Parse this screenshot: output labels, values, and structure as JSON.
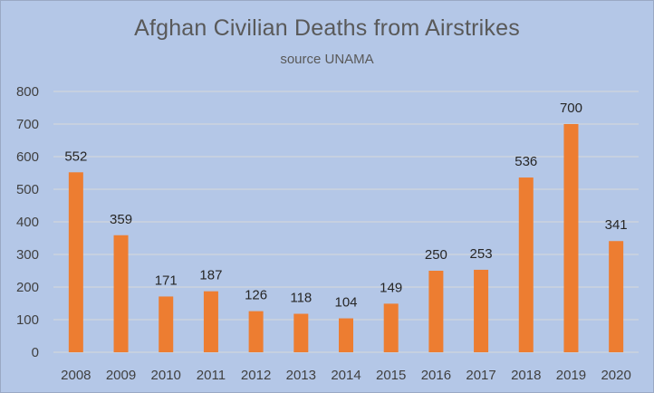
{
  "colors": {
    "background": "#b4c7e7",
    "bar": "#ed7d31",
    "grid": "#d9d9d9",
    "text": "#595959"
  },
  "chart_data": {
    "type": "bar",
    "title": "Afghan Civilian Deaths from Airstrikes",
    "subtitle": "source UNAMA",
    "xlabel": "",
    "ylabel": "",
    "ylim": [
      0,
      800
    ],
    "yticks": [
      0,
      100,
      200,
      300,
      400,
      500,
      600,
      700,
      800
    ],
    "grid": true,
    "legend": "none",
    "data_labels": true,
    "categories": [
      "2008",
      "2009",
      "2010",
      "2011",
      "2012",
      "2013",
      "2014",
      "2015",
      "2016",
      "2017",
      "2018",
      "2019",
      "2020"
    ],
    "values": [
      552,
      359,
      171,
      187,
      126,
      118,
      104,
      149,
      250,
      253,
      536,
      700,
      341
    ]
  }
}
